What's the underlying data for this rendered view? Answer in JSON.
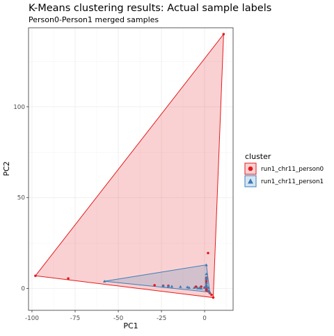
{
  "chart_data": {
    "type": "scatter",
    "title": "K-Means clustering results: Actual sample labels",
    "subtitle": "Person0-Person1 merged samples",
    "xlabel": "PC1",
    "ylabel": "PC2",
    "xlim": [
      -102,
      16.5
    ],
    "ylim": [
      -12,
      143.5
    ],
    "x_ticks": [
      -100,
      -75,
      -50,
      -25,
      0
    ],
    "y_ticks": [
      0,
      50,
      100
    ],
    "grid": true,
    "legend": {
      "title": "cluster",
      "position": "right"
    },
    "series": [
      {
        "name": "run1_chr11_person0",
        "color": "#E41A1C",
        "marker": "circle",
        "points": [
          [
            11,
            140
          ],
          [
            -98,
            7
          ],
          [
            -79,
            5.5
          ],
          [
            5,
            -5
          ],
          [
            2,
            19.5
          ],
          [
            -29,
            1.8
          ],
          [
            -21,
            1.5
          ],
          [
            -24,
            1.5
          ],
          [
            -5,
            1
          ],
          [
            -2,
            1
          ],
          [
            0,
            0.5
          ],
          [
            1,
            0
          ],
          [
            1,
            1.5
          ],
          [
            1,
            3
          ],
          [
            1,
            4
          ],
          [
            1,
            5
          ],
          [
            1,
            6
          ],
          [
            1,
            -0.5
          ],
          [
            1,
            -1
          ],
          [
            2,
            -1.5
          ],
          [
            3,
            -2.5
          ],
          [
            4,
            -3.5
          ]
        ],
        "hull": [
          [
            11,
            140
          ],
          [
            -98,
            7
          ],
          [
            5,
            -5
          ]
        ]
      },
      {
        "name": "run1_chr11_person1",
        "color": "#377EB8",
        "marker": "triangle",
        "points": [
          [
            -58,
            4
          ],
          [
            -24,
            1.5
          ],
          [
            -21,
            1.3
          ],
          [
            -19,
            1.2
          ],
          [
            -14,
            1
          ],
          [
            -10,
            0.8
          ],
          [
            -9,
            0.5
          ],
          [
            -6,
            0.5
          ],
          [
            -4,
            0.3
          ],
          [
            -3,
            0.3
          ],
          [
            -2,
            0.2
          ],
          [
            0,
            0.5
          ],
          [
            1,
            1
          ],
          [
            1,
            2
          ],
          [
            1,
            3
          ],
          [
            1,
            5
          ],
          [
            1,
            6
          ],
          [
            1,
            8
          ],
          [
            1,
            13
          ],
          [
            2,
            -1
          ],
          [
            3,
            -2
          ],
          [
            2,
            0.5
          ]
        ],
        "hull": [
          [
            -58,
            4
          ],
          [
            1,
            13
          ],
          [
            3,
            -2
          ]
        ]
      }
    ]
  }
}
